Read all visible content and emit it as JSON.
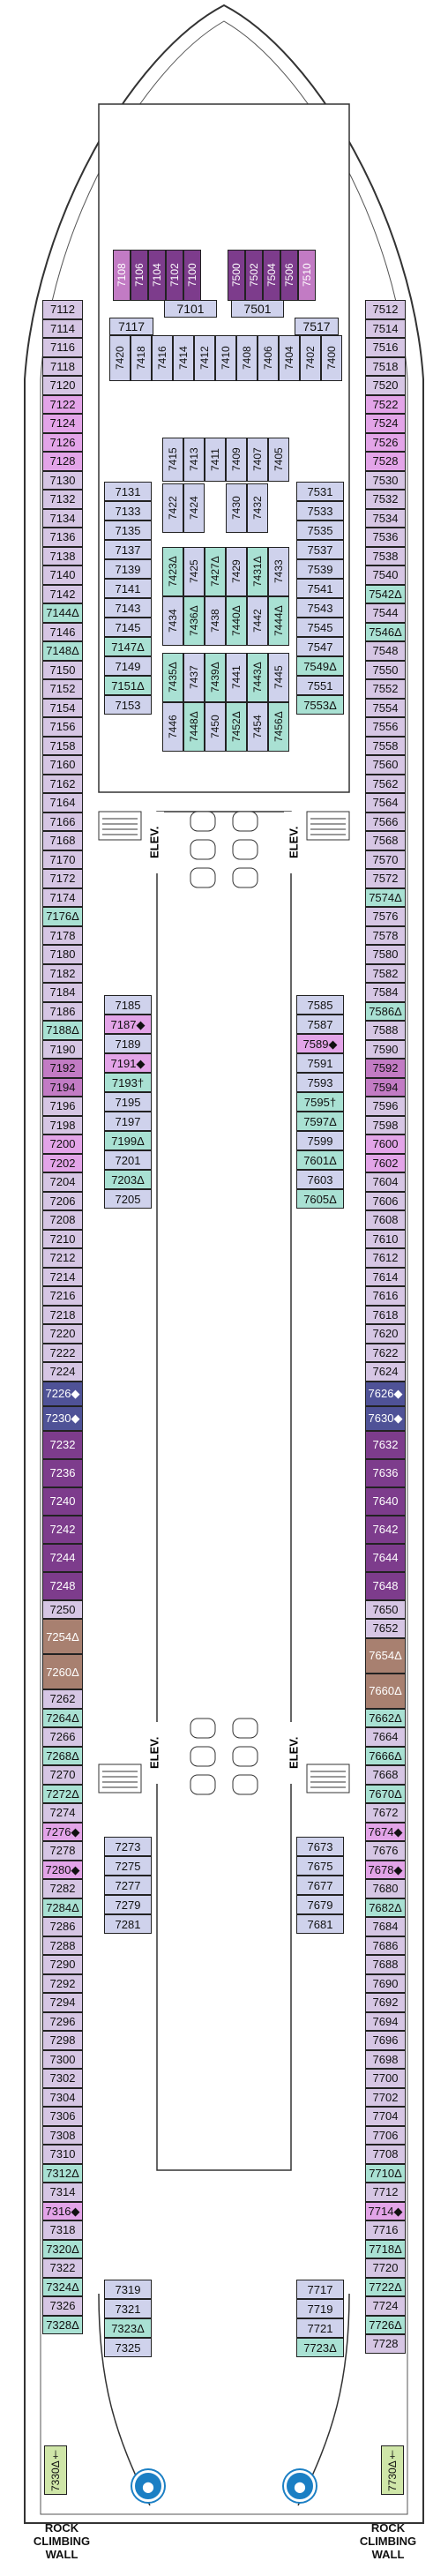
{
  "colors": {
    "inside": "#cfd2ec",
    "oceanview": "#d6c6e4",
    "balcony": "#c9cdeb",
    "accessible": "#a9e1d3",
    "suite_light": "#e3a4e8",
    "suite_mid": "#c27bc4",
    "suite_dark": "#7d3c8c",
    "suite_navy": "#4f5297",
    "suite_brown": "#a88070",
    "corner_green": "#cfe6a8",
    "teal": "#a9e1d3"
  },
  "labels": {
    "elev": "ELEV.",
    "rock_left": "ROCK\nCLIMBING\nWALL",
    "rock_right": "ROCK\nCLIMBING\nWALL",
    "left_bottom_corner": "7330Δ†",
    "right_bottom_corner": "7730Δ†"
  },
  "forward_suites": [
    "7108",
    "7106",
    "7104",
    "7102",
    "7100",
    "7500",
    "7502",
    "7504",
    "7506",
    "7510"
  ],
  "top_row": [
    "7101",
    "7501"
  ],
  "top_row2": [
    "7117",
    "7517"
  ],
  "top_block_cols": [
    "7420",
    "7418",
    "7416",
    "7414",
    "7412",
    "7410",
    "7408",
    "7406",
    "7404",
    "7402",
    "7400"
  ],
  "center_upper": [
    "7415",
    "7413",
    "7411",
    "7409",
    "7407",
    "7405"
  ],
  "center_upper2": [
    "7422",
    "7424",
    "7430",
    "7432"
  ],
  "center_mid": [
    "7423Δ",
    "7425",
    "7427Δ",
    "7429",
    "7431Δ",
    "7433"
  ],
  "center_mid2": [
    "7434",
    "7436Δ",
    "7438",
    "7440Δ",
    "7442",
    "7444Δ"
  ],
  "center_low": [
    "7435Δ",
    "7437",
    "7439Δ",
    "7441",
    "7443Δ",
    "7445"
  ],
  "center_low2": [
    "7446",
    "7448Δ",
    "7450",
    "7452Δ",
    "7454",
    "7456Δ"
  ],
  "left_outer": [
    "7112",
    "7114",
    "7116",
    "7118",
    "7120",
    "7122",
    "7124",
    "7126",
    "7128",
    "7130",
    "7132",
    "7134",
    "7136",
    "7138",
    "7140",
    "7142",
    "7144Δ",
    "7146",
    "7148Δ",
    "7150",
    "7152",
    "7154",
    "7156",
    "7158",
    "7160",
    "7162",
    "7164",
    "7166",
    "7168",
    "7170",
    "7172",
    "7174",
    "7176Δ",
    "7178",
    "7180",
    "7182",
    "7184",
    "7186",
    "7188Δ",
    "7190",
    "7192",
    "7194",
    "7196",
    "7198",
    "7200",
    "7202",
    "7204",
    "7206",
    "7208",
    "7210",
    "7212",
    "7214",
    "7216",
    "7218",
    "7220",
    "7222",
    "7224",
    "7226◆",
    "7230◆",
    "7232",
    "7236",
    "7240",
    "7242",
    "7244",
    "7248",
    "7250",
    "7254Δ",
    "7260Δ",
    "7262",
    "7264Δ",
    "7266",
    "7268Δ",
    "7270",
    "7272Δ",
    "7274",
    "7276◆",
    "7278",
    "7280◆",
    "7282",
    "7284Δ",
    "7286",
    "7288",
    "7290",
    "7292",
    "7294",
    "7296",
    "7298",
    "7300",
    "7302",
    "7304",
    "7306",
    "7308",
    "7310",
    "7312Δ",
    "7314",
    "7316◆",
    "7318",
    "7320Δ",
    "7322",
    "7324Δ",
    "7326",
    "7328Δ"
  ],
  "right_outer": [
    "7512",
    "7514",
    "7516",
    "7518",
    "7520",
    "7522",
    "7524",
    "7526",
    "7528",
    "7530",
    "7532",
    "7534",
    "7536",
    "7538",
    "7540",
    "7542Δ",
    "7544",
    "7546Δ",
    "7548",
    "7550",
    "7552",
    "7554",
    "7556",
    "7558",
    "7560",
    "7562",
    "7564",
    "7566",
    "7568",
    "7570",
    "7572",
    "7574Δ",
    "7576",
    "7578",
    "7580",
    "7582",
    "7584",
    "7586Δ",
    "7588",
    "7590",
    "7592",
    "7594",
    "7596",
    "7598",
    "7600",
    "7602",
    "7604",
    "7606",
    "7608",
    "7610",
    "7612",
    "7614",
    "7616",
    "7618",
    "7620",
    "7622",
    "7624",
    "7626◆",
    "7630◆",
    "7632",
    "7636",
    "7640",
    "7642",
    "7644",
    "7648",
    "7650",
    "7652",
    "7654Δ",
    "7660Δ",
    "7662Δ",
    "7664",
    "7666Δ",
    "7668",
    "7670Δ",
    "7672",
    "7674◆",
    "7676",
    "7678◆",
    "7680",
    "7682Δ",
    "7684",
    "7686",
    "7688",
    "7690",
    "7692",
    "7694",
    "7696",
    "7698",
    "7700",
    "7702",
    "7704",
    "7706",
    "7708",
    "7710Δ",
    "7712",
    "7714◆",
    "7716",
    "7718Δ",
    "7720",
    "7722Δ",
    "7724",
    "7726Δ",
    "7728"
  ],
  "left_inner_top": [
    "7131",
    "7133",
    "7135",
    "7137",
    "7139",
    "7141",
    "7143",
    "7145",
    "7147Δ",
    "7149",
    "7151Δ",
    "7153"
  ],
  "right_inner_top": [
    "7531",
    "7533",
    "7535",
    "7537",
    "7539",
    "7541",
    "7543",
    "7545",
    "7547",
    "7549Δ",
    "7551",
    "7553Δ"
  ],
  "left_inner_mid": [
    "7185",
    "7187◆",
    "7189",
    "7191◆",
    "7193†",
    "7195",
    "7197",
    "7199Δ",
    "7201",
    "7203Δ",
    "7205"
  ],
  "right_inner_mid": [
    "7585",
    "7587",
    "7589◆",
    "7591",
    "7593",
    "7595†",
    "7597Δ",
    "7599",
    "7601Δ",
    "7603",
    "7605Δ"
  ],
  "left_inner_low": [
    "7273",
    "7275",
    "7277",
    "7279",
    "7281"
  ],
  "right_inner_low": [
    "7673",
    "7675",
    "7677",
    "7679",
    "7681"
  ],
  "left_inner_aft": [
    "7319",
    "7321",
    "7323Δ",
    "7325"
  ],
  "right_inner_aft": [
    "7717",
    "7719",
    "7721",
    "7723Δ"
  ]
}
